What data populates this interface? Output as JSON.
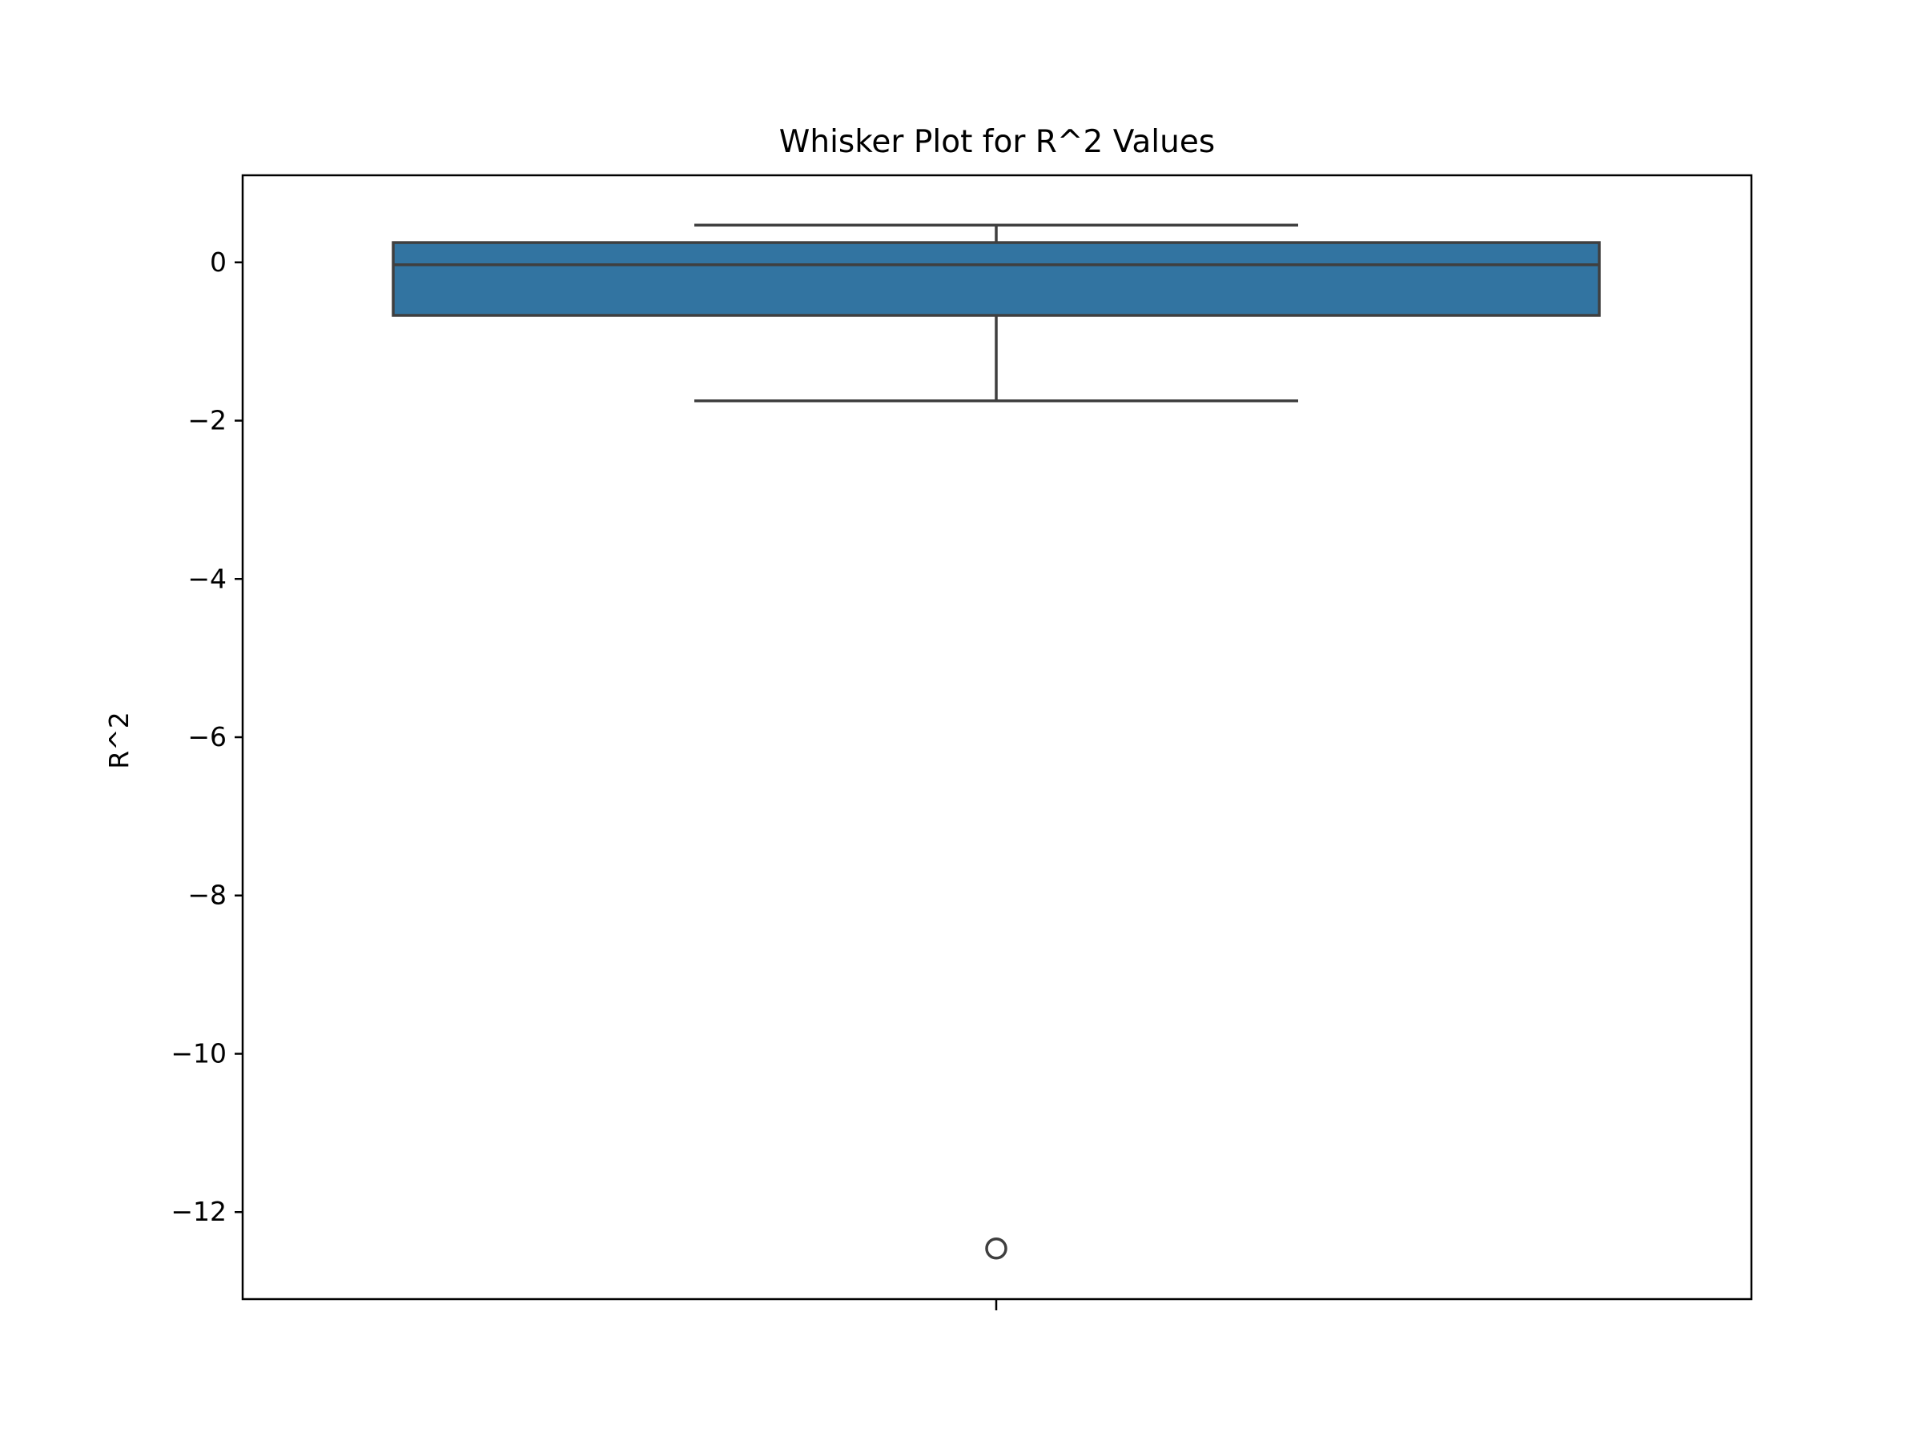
{
  "chart_data": {
    "type": "box",
    "title": "Whisker Plot for R^2 Values",
    "xlabel": "",
    "ylabel": "R^2",
    "ylim": [
      -13.1,
      1.1
    ],
    "yticks": [
      0,
      -2,
      -4,
      -6,
      -8,
      -10,
      -12
    ],
    "ytick_labels": [
      "0",
      "−2",
      "−4",
      "−6",
      "−8",
      "−10",
      "−12"
    ],
    "categories": [
      ""
    ],
    "box": {
      "whisker_high": 0.47,
      "q3": 0.25,
      "median": -0.03,
      "q1": -0.67,
      "whisker_low": -1.75,
      "outliers": [
        -12.46
      ]
    },
    "box_color": "#3274a1",
    "line_color": "#3f3f3f",
    "grid": false,
    "legend": "none"
  }
}
